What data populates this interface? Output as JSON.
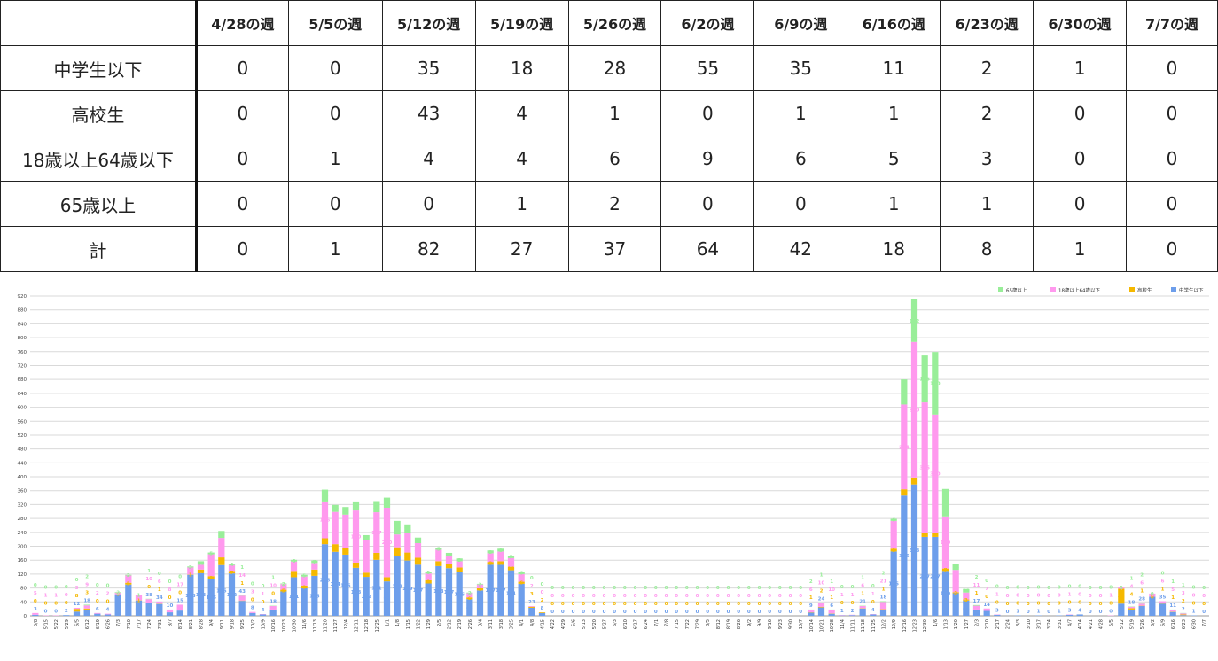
{
  "table": {
    "headers": [
      "",
      "4/28の週",
      "5/5の週",
      "5/12の週",
      "5/19の週",
      "5/26の週",
      "6/2の週",
      "6/9の週",
      "6/16の週",
      "6/23の週",
      "6/30の週",
      "7/7の週"
    ],
    "rows": [
      {
        "label": "中学生以下",
        "values": [
          "0",
          "0",
          "35",
          "18",
          "28",
          "55",
          "35",
          "11",
          "2",
          "1",
          "0"
        ]
      },
      {
        "label": "高校生",
        "values": [
          "0",
          "0",
          "43",
          "4",
          "1",
          "0",
          "1",
          "1",
          "2",
          "0",
          "0"
        ]
      },
      {
        "label": "18歳以上64歳以下",
        "values": [
          "0",
          "1",
          "4",
          "4",
          "6",
          "9",
          "6",
          "5",
          "3",
          "0",
          "0"
        ]
      },
      {
        "label": "65歳以上",
        "values": [
          "0",
          "0",
          "0",
          "1",
          "2",
          "0",
          "0",
          "1",
          "1",
          "0",
          "0"
        ]
      },
      {
        "label": "計",
        "values": [
          "0",
          "1",
          "82",
          "27",
          "37",
          "64",
          "42",
          "18",
          "8",
          "1",
          "0"
        ]
      }
    ]
  },
  "chart_data": {
    "type": "bar",
    "stacked": true,
    "ylim": [
      0,
      920
    ],
    "yticks": [
      0,
      40,
      80,
      120,
      160,
      200,
      240,
      280,
      320,
      360,
      400,
      440,
      480,
      520,
      560,
      600,
      640,
      680,
      720,
      760,
      800,
      840,
      880,
      920
    ],
    "grid": true,
    "legend_position": "top-right",
    "colors": {
      "g1": "#6d9eeb",
      "g2": "#f5b800",
      "g3": "#ff99ee",
      "g4": "#99ee99"
    },
    "legend": [
      {
        "key": "g4",
        "label": "65歳以上"
      },
      {
        "key": "g3",
        "label": "18歳以上64歳以下"
      },
      {
        "key": "g2",
        "label": "高校生"
      },
      {
        "key": "g1",
        "label": "中学生以下"
      }
    ],
    "categories": [
      "5/8",
      "5/15",
      "5/22",
      "5/29",
      "6/5",
      "6/12",
      "6/19",
      "6/26",
      "7/3",
      "7/10",
      "7/17",
      "7/24",
      "7/31",
      "8/7",
      "8/14",
      "8/21",
      "8/28",
      "9/4",
      "9/11",
      "9/18",
      "9/25",
      "10/2",
      "10/9",
      "10/16",
      "10/23",
      "10/30",
      "11/6",
      "11/13",
      "11/20",
      "11/27",
      "12/4",
      "12/11",
      "12/18",
      "12/25",
      "1/1",
      "1/8",
      "1/15",
      "1/22",
      "1/29",
      "2/5",
      "2/12",
      "2/19",
      "2/26",
      "3/4",
      "3/11",
      "3/18",
      "3/25",
      "4/1",
      "4/8",
      "4/15",
      "4/22",
      "4/29",
      "5/6",
      "5/13",
      "5/20",
      "5/27",
      "6/3",
      "6/10",
      "6/17",
      "6/24",
      "7/1",
      "7/8",
      "7/15",
      "7/22",
      "7/29",
      "8/5",
      "8/12",
      "8/19",
      "8/26",
      "9/2",
      "9/9",
      "9/16",
      "9/23",
      "9/30",
      "10/7",
      "10/14",
      "10/21",
      "10/28",
      "11/4",
      "11/11",
      "11/18",
      "11/25",
      "12/2",
      "12/9",
      "12/16",
      "12/23",
      "12/30",
      "1/6",
      "1/13",
      "1/20",
      "1/27",
      "2/3",
      "2/10",
      "2/17",
      "2/24",
      "3/3",
      "3/10",
      "3/17",
      "3/24",
      "3/31",
      "4/7",
      "4/14",
      "4/21",
      "4/28",
      "5/5",
      "5/12",
      "5/19",
      "5/26",
      "6/2",
      "6/9",
      "6/16",
      "6/23",
      "6/30",
      "7/7"
    ],
    "series": [
      {
        "key": "g1",
        "name": "中学生以下",
        "values": [
          3,
          0,
          0,
          2,
          12,
          18,
          6,
          4,
          62,
          90,
          44,
          38,
          34,
          10,
          15,
          118,
          123,
          106,
          146,
          122,
          43,
          8,
          4,
          18,
          70,
          111,
          79,
          115,
          206,
          184,
          176,
          138,
          112,
          161,
          99,
          172,
          159,
          147,
          93,
          143,
          137,
          126,
          48,
          73,
          147,
          147,
          131,
          92,
          23,
          8,
          0,
          0,
          0,
          0,
          0,
          0,
          0,
          0,
          0,
          0,
          0,
          0,
          0,
          0,
          0,
          0,
          0,
          0,
          0,
          0,
          0,
          0,
          0,
          0,
          0,
          9,
          24,
          6,
          1,
          2,
          21,
          4,
          18,
          185,
          346,
          378,
          227,
          227,
          129,
          65,
          44,
          17,
          14,
          3,
          0,
          1,
          0,
          1,
          0,
          1,
          3,
          4,
          0,
          0,
          0,
          35,
          18,
          28,
          55,
          35,
          11,
          2,
          1,
          0
        ]
      },
      {
        "key": "g2",
        "name": "高校生",
        "values": [
          0,
          0,
          0,
          0,
          8,
          3,
          0,
          0,
          0,
          5,
          1,
          0,
          1,
          0,
          0,
          1,
          10,
          8,
          22,
          7,
          1,
          0,
          0,
          0,
          5,
          18,
          8,
          18,
          17,
          22,
          18,
          15,
          12,
          20,
          12,
          25,
          23,
          20,
          9,
          14,
          12,
          13,
          5,
          6,
          8,
          10,
          10,
          6,
          3,
          2,
          0,
          0,
          0,
          0,
          0,
          0,
          0,
          0,
          0,
          0,
          0,
          0,
          0,
          0,
          0,
          0,
          0,
          0,
          0,
          0,
          0,
          0,
          0,
          0,
          0,
          1,
          2,
          1,
          0,
          0,
          1,
          0,
          1,
          8,
          18,
          20,
          12,
          12,
          7,
          3,
          3,
          1,
          0,
          0,
          0,
          0,
          0,
          0,
          0,
          0,
          0,
          0,
          0,
          0,
          0,
          43,
          4,
          1,
          0,
          1,
          1,
          2,
          0,
          0
        ]
      },
      {
        "key": "g3",
        "name": "18歳以上64歳以下",
        "values": [
          5,
          1,
          1,
          0,
          3,
          9,
          2,
          2,
          4,
          21,
          14,
          10,
          6,
          8,
          17,
          20,
          14,
          63,
          56,
          17,
          14,
          3,
          1,
          10,
          16,
          27,
          26,
          19,
          106,
          93,
          97,
          150,
          93,
          117,
          200,
          37,
          55,
          42,
          20,
          33,
          22,
          18,
          12,
          11,
          25,
          28,
          25,
          22,
          2,
          0,
          0,
          0,
          0,
          0,
          0,
          0,
          0,
          0,
          0,
          0,
          0,
          0,
          0,
          0,
          0,
          0,
          0,
          0,
          0,
          0,
          0,
          0,
          0,
          0,
          0,
          6,
          10,
          10,
          1,
          1,
          6,
          1,
          21,
          80,
          244,
          390,
          375,
          340,
          150,
          64,
          20,
          11,
          7,
          1,
          0,
          0,
          0,
          0,
          0,
          0,
          1,
          0,
          0,
          0,
          1,
          4,
          4,
          6,
          9,
          6,
          5,
          3,
          0,
          0
        ]
      },
      {
        "key": "g4",
        "name": "65歳以上",
        "values": [
          0,
          0,
          0,
          0,
          0,
          2,
          0,
          0,
          2,
          2,
          1,
          1,
          0,
          0,
          0,
          3,
          10,
          5,
          20,
          4,
          1,
          0,
          0,
          1,
          2,
          5,
          5,
          7,
          34,
          20,
          22,
          26,
          15,
          32,
          29,
          39,
          26,
          16,
          5,
          5,
          10,
          8,
          2,
          2,
          8,
          8,
          7,
          6,
          0,
          0,
          0,
          0,
          0,
          0,
          0,
          0,
          0,
          0,
          0,
          0,
          0,
          0,
          0,
          0,
          0,
          0,
          0,
          0,
          0,
          0,
          0,
          0,
          0,
          0,
          0,
          2,
          1,
          1,
          0,
          0,
          1,
          0,
          2,
          6,
          72,
          122,
          135,
          180,
          79,
          16,
          10,
          2,
          0,
          0,
          0,
          0,
          0,
          0,
          0,
          0,
          0,
          0,
          0,
          0,
          0,
          0,
          1,
          2,
          0,
          0,
          1,
          1,
          0,
          0
        ]
      }
    ]
  }
}
